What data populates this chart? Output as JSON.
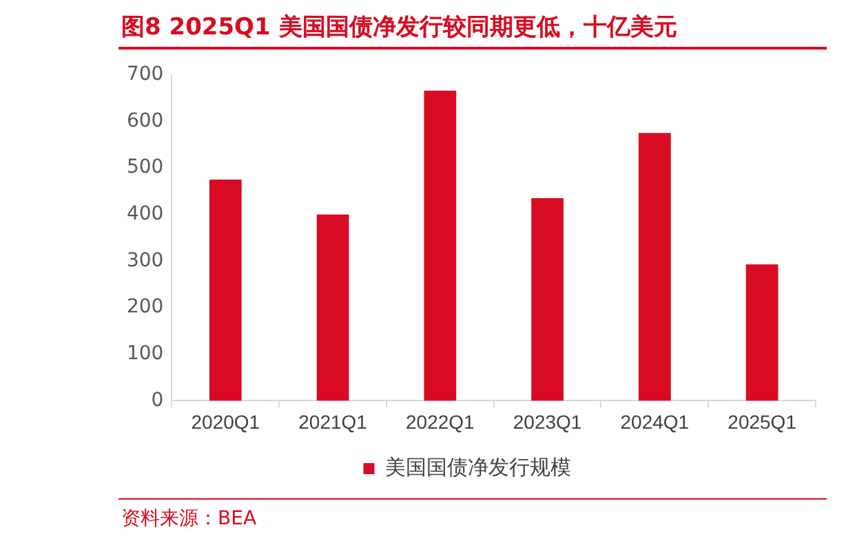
{
  "chart_data": {
    "type": "bar",
    "title": "图8  2025Q1 美国国债净发行较同期更低，十亿美元",
    "categories": [
      "2020Q1",
      "2021Q1",
      "2022Q1",
      "2023Q1",
      "2024Q1",
      "2025Q1"
    ],
    "series": [
      {
        "name": "美国国债净发行规模",
        "color": "#d90b22",
        "values": [
          475,
          400,
          666,
          435,
          575,
          293
        ]
      }
    ],
    "ylim": [
      0,
      700
    ],
    "yticks": [
      0,
      100,
      200,
      300,
      400,
      500,
      600,
      700
    ],
    "grid": false,
    "legend": "bottom",
    "annotations": [
      "资料来源：BEA"
    ]
  }
}
